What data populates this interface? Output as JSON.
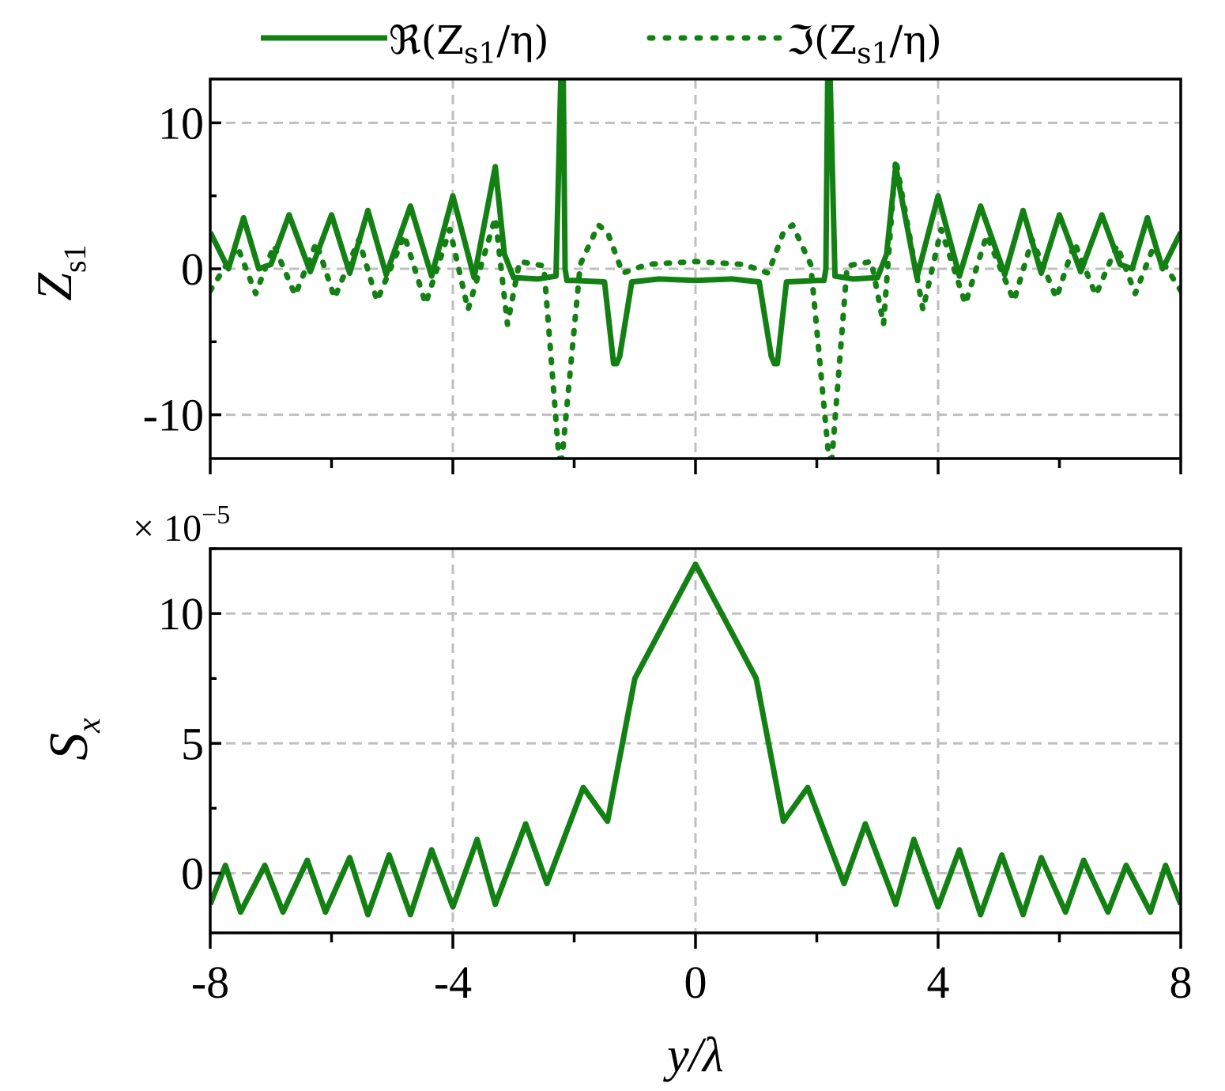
{
  "chart_data": [
    {
      "type": "line",
      "ylabel": "Z",
      "ylabel_sub": "s1",
      "xlim": [
        -8,
        8
      ],
      "ylim": [
        -13,
        13
      ],
      "x_ticks": [
        -8,
        -4,
        0,
        4,
        8
      ],
      "y_ticks": [
        -10,
        0,
        10
      ],
      "y_tick_labels": [
        "-10",
        "0",
        "10"
      ],
      "grid": true,
      "legend": {
        "placement": "top",
        "items": [
          {
            "label": "ℜ(Z",
            "sub": "s1",
            "tail": "/η)",
            "style": "solid"
          },
          {
            "label": "ℑ(Z",
            "sub": "s1",
            "tail": "/η)",
            "style": "dotted"
          }
        ]
      },
      "series": [
        {
          "name": "ℜ(Zs1/η)",
          "style": "solid",
          "color": "#138013",
          "x": [
            -8,
            -7.7,
            -7.45,
            -7.2,
            -7.0,
            -6.7,
            -6.35,
            -6.0,
            -5.7,
            -5.4,
            -5.1,
            -4.7,
            -4.35,
            -4.0,
            -3.65,
            -3.3,
            -3.15,
            -3.0,
            -2.6,
            -2.3,
            -2.22,
            -2.18,
            -2.15,
            -2.12,
            -2.0,
            -1.5,
            -1.35,
            -1.3,
            -1.25,
            -1.05,
            -0.6,
            0,
            0.6,
            1.05,
            1.25,
            1.3,
            1.35,
            1.5,
            2.0,
            2.12,
            2.15,
            2.18,
            2.22,
            2.3,
            2.6,
            3.0,
            3.15,
            3.3,
            3.65,
            4.0,
            4.35,
            4.7,
            5.1,
            5.4,
            5.7,
            6.0,
            6.35,
            6.7,
            7.0,
            7.2,
            7.45,
            7.7,
            8
          ],
          "y": [
            2.5,
            0,
            3.5,
            0,
            0.3,
            3.7,
            -0.2,
            3.7,
            -0.3,
            4.0,
            -0.4,
            4.3,
            -0.5,
            5.0,
            -0.6,
            7.0,
            1.0,
            -0.6,
            -0.7,
            -0.5,
            13,
            13,
            0,
            -0.8,
            -0.8,
            -0.9,
            -6.5,
            -6.5,
            -6.0,
            -0.9,
            -0.7,
            -0.8,
            -0.7,
            -0.9,
            -6.0,
            -6.5,
            -6.5,
            -0.9,
            -0.8,
            -0.8,
            0,
            13,
            13,
            -0.5,
            -0.7,
            -0.6,
            1.0,
            7.0,
            -0.6,
            5.0,
            -0.5,
            4.3,
            -0.4,
            4.0,
            -0.3,
            3.7,
            -0.2,
            3.7,
            0.3,
            0,
            3.5,
            0,
            2.5
          ]
        },
        {
          "name": "ℑ(Zs1/η)",
          "style": "dotted",
          "color": "#138013",
          "x": [
            -8,
            -7.55,
            -7.25,
            -6.95,
            -6.6,
            -6.25,
            -5.95,
            -5.55,
            -5.25,
            -4.8,
            -4.45,
            -4.05,
            -3.75,
            -3.3,
            -3.1,
            -2.9,
            -2.5,
            -2.25,
            -2.2,
            -1.9,
            -1.6,
            -1.45,
            -1.2,
            -0.8,
            0,
            0.8,
            1.2,
            1.45,
            1.6,
            1.9,
            2.2,
            2.25,
            2.5,
            2.9,
            3.1,
            3.3,
            3.75,
            4.05,
            4.45,
            4.8,
            5.25,
            5.55,
            5.95,
            6.25,
            6.6,
            6.95,
            7.25,
            7.55,
            8
          ],
          "y": [
            -1.5,
            1.5,
            -1.7,
            1.6,
            -1.8,
            1.8,
            -2.0,
            2.0,
            -2.2,
            2.3,
            -2.4,
            2.7,
            -2.8,
            3.5,
            -3.8,
            0.5,
            0.2,
            -13,
            -13,
            0.3,
            3.0,
            2.5,
            -0.3,
            0.3,
            0.5,
            0.3,
            -0.3,
            2.5,
            3.0,
            0.3,
            -13,
            -13,
            0.2,
            0.5,
            -3.8,
            7.5,
            -2.8,
            2.7,
            -2.4,
            2.3,
            -2.2,
            2.0,
            -2.0,
            1.8,
            -1.8,
            1.6,
            -1.7,
            1.5,
            -1.5
          ]
        }
      ]
    },
    {
      "type": "line",
      "ylabel": "S",
      "ylabel_sub": "x",
      "xlabel": "y/λ",
      "multiplier_label": "× 10",
      "multiplier_exp": "−5",
      "xlim": [
        -8,
        8
      ],
      "ylim": [
        -2.3,
        12.5
      ],
      "x_ticks": [
        -8,
        -4,
        0,
        4,
        8
      ],
      "x_tick_labels": [
        "-8",
        "-4",
        "0",
        "4",
        "8"
      ],
      "y_ticks": [
        0,
        5,
        10
      ],
      "y_tick_labels": [
        "0",
        "5",
        "10"
      ],
      "grid": true,
      "series": [
        {
          "name": "",
          "color": "#138013",
          "x": [
            -8,
            -7.75,
            -7.5,
            -7.1,
            -6.8,
            -6.4,
            -6.1,
            -5.7,
            -5.4,
            -5.05,
            -4.7,
            -4.35,
            -4.0,
            -3.6,
            -3.3,
            -2.8,
            -2.45,
            -1.85,
            -1.45,
            -1.0,
            0,
            1.0,
            1.45,
            1.85,
            2.45,
            2.8,
            3.3,
            3.6,
            4.0,
            4.35,
            4.7,
            5.05,
            5.4,
            5.7,
            6.1,
            6.4,
            6.8,
            7.1,
            7.5,
            7.75,
            8
          ],
          "y": [
            -1.2,
            0.3,
            -1.5,
            0.3,
            -1.5,
            0.5,
            -1.5,
            0.6,
            -1.6,
            0.7,
            -1.6,
            0.9,
            -1.3,
            1.3,
            -1.2,
            1.9,
            -0.4,
            3.3,
            2.0,
            7.5,
            11.9,
            7.5,
            2.0,
            3.3,
            -0.4,
            1.9,
            -1.2,
            1.3,
            -1.3,
            0.9,
            -1.6,
            0.7,
            -1.6,
            0.6,
            -1.5,
            0.5,
            -1.5,
            0.3,
            -1.5,
            0.3,
            -1.2
          ]
        }
      ]
    }
  ]
}
